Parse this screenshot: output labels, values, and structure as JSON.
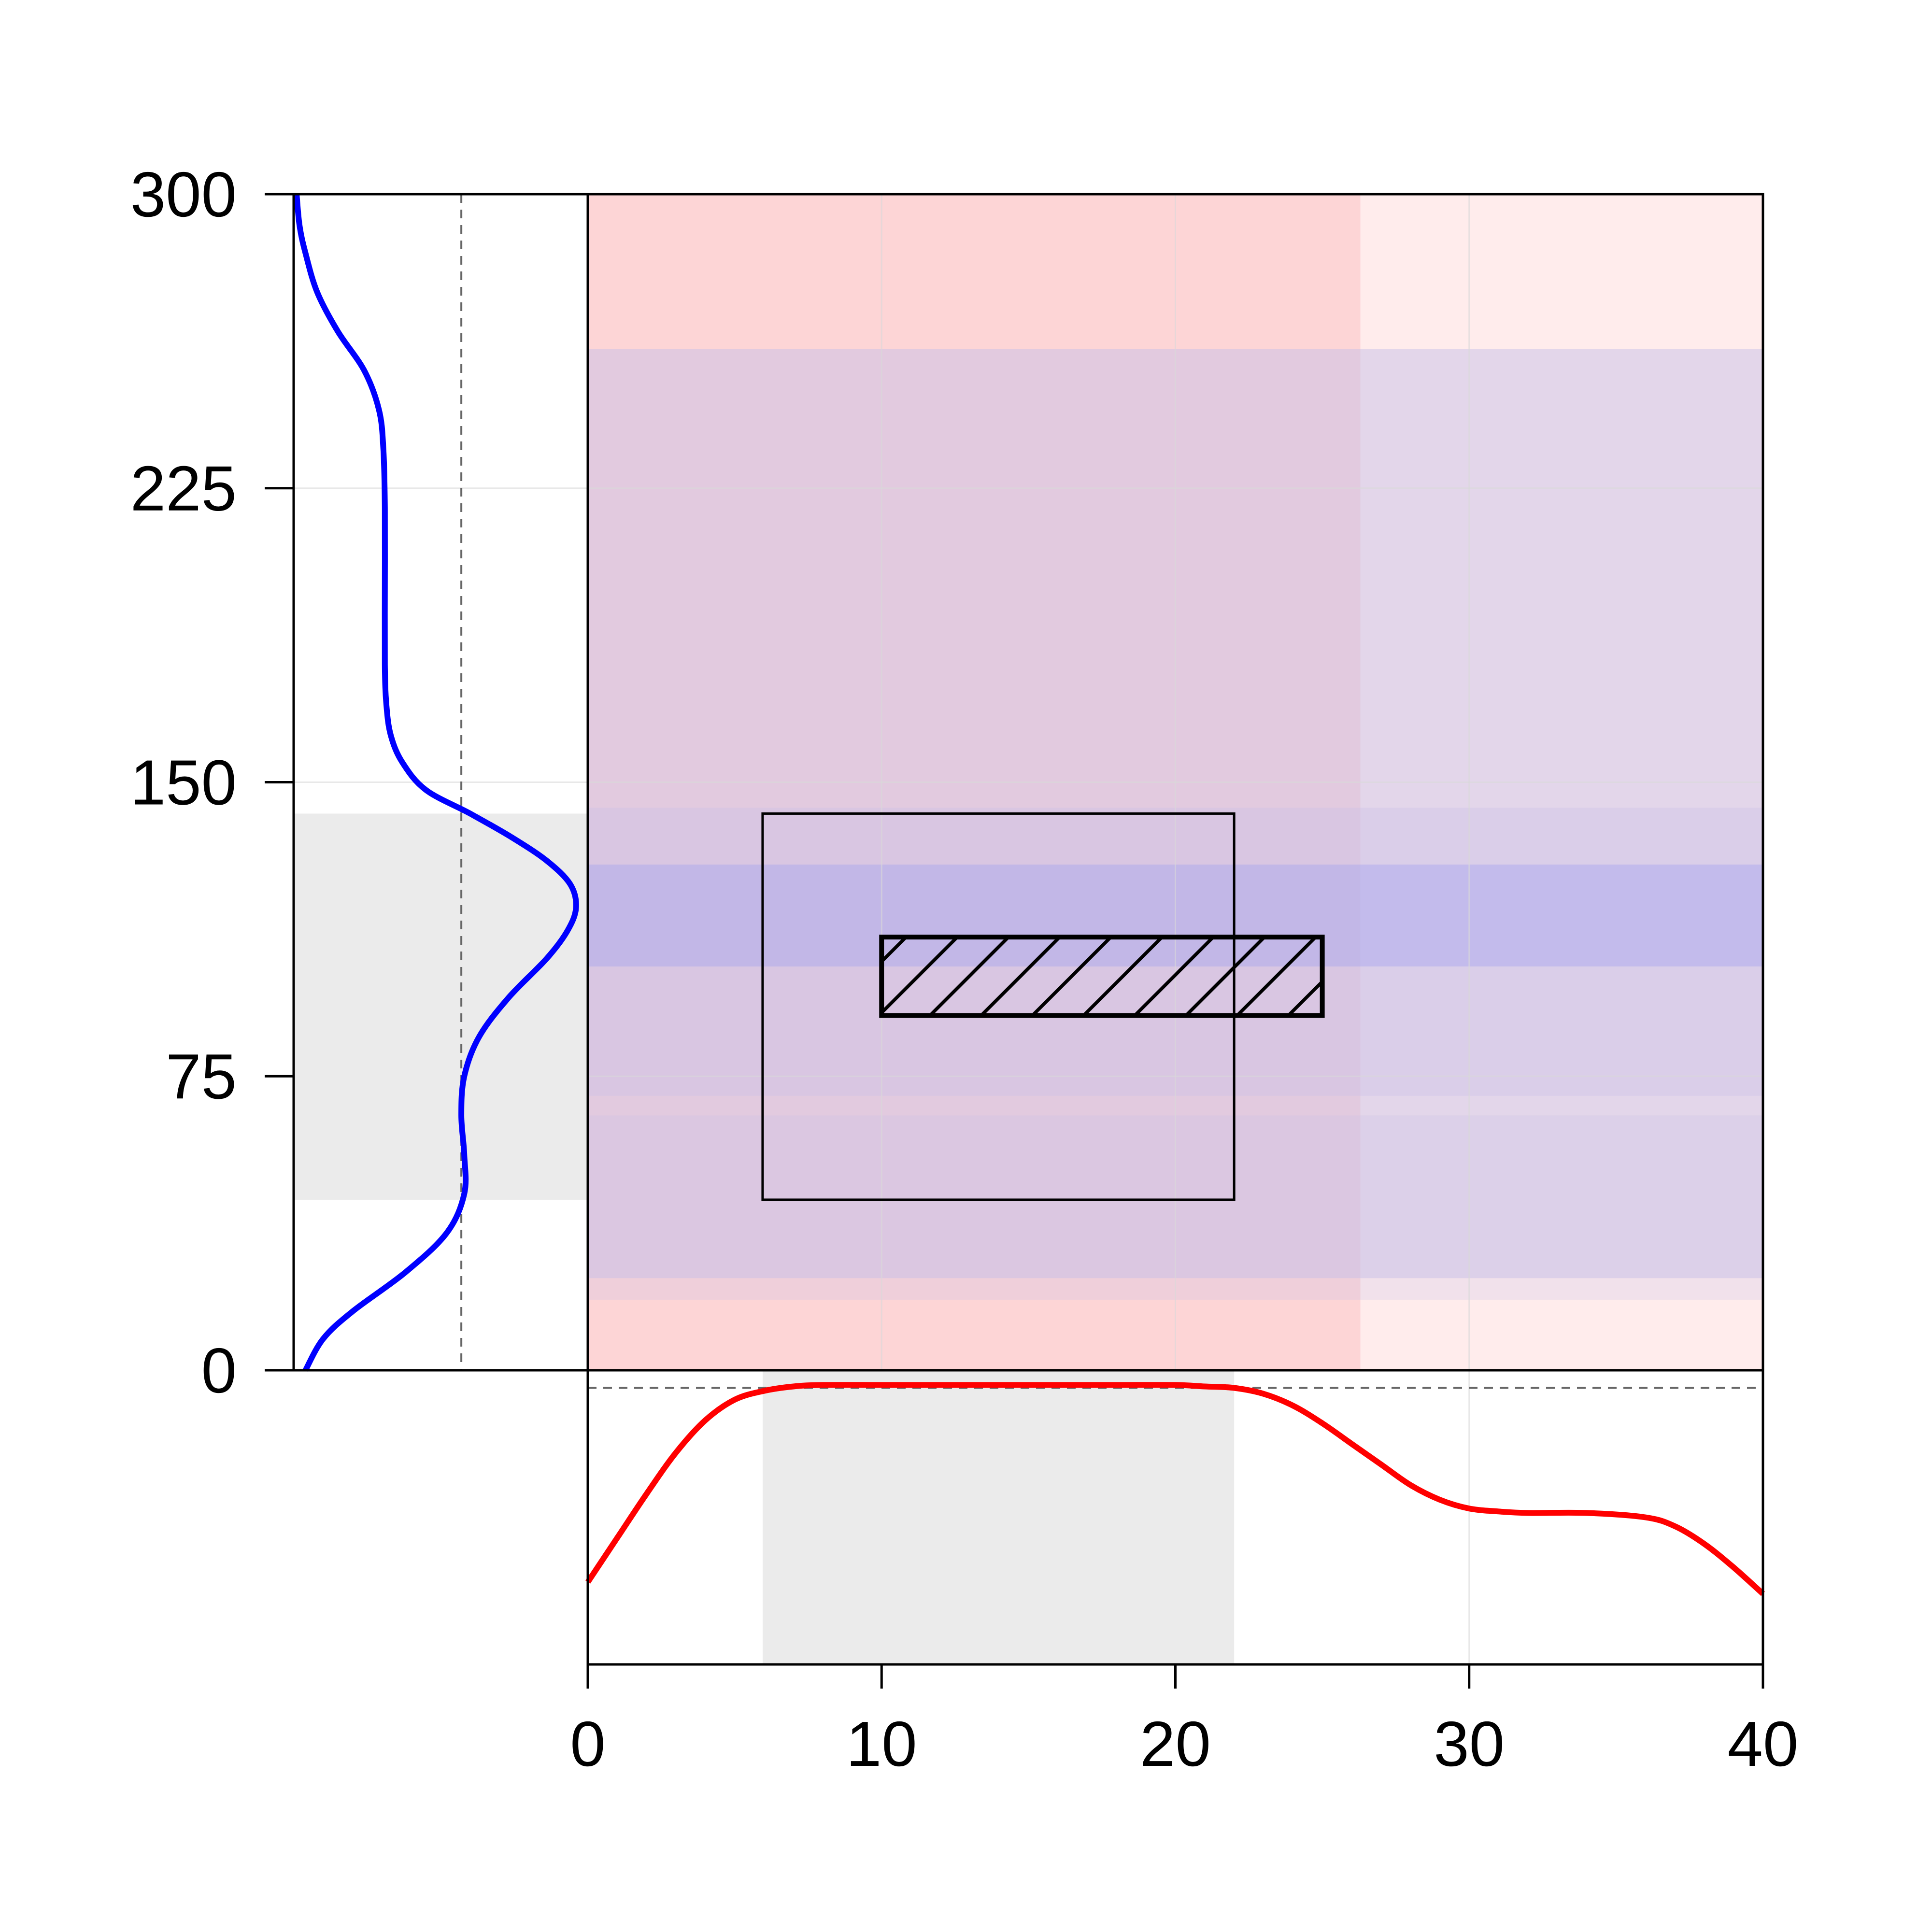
{
  "chart_data": {
    "type": "area",
    "title": "",
    "xlabel": "",
    "ylabel": "",
    "xlim": [
      0,
      40
    ],
    "ylim": [
      0,
      300
    ],
    "x_ticks": [
      "0",
      "10",
      "20",
      "30",
      "40"
    ],
    "x_tick_values": [
      0,
      10,
      20,
      30,
      40
    ],
    "y_ticks": [
      "0",
      "75",
      "150",
      "225",
      "300"
    ],
    "y_tick_values": [
      0,
      75,
      150,
      225,
      300
    ],
    "grid": true,
    "x_bands": [
      {
        "name": "x-band-strong",
        "x0": 0,
        "x1": 26.3,
        "color": "#fdd5d6"
      },
      {
        "name": "x-band-light",
        "x0": 26.3,
        "x1": 40,
        "color": "#ffecec"
      }
    ],
    "y_bands": [
      {
        "name": "y-band-main",
        "y0": 23.5,
        "y1": 260.5,
        "color": "#c8c0e8",
        "opacity": 0.5
      },
      {
        "name": "y-band-mid",
        "y0": 70,
        "y1": 143.5,
        "color": "#c8c0e8",
        "opacity": 0.35
      },
      {
        "name": "y-band-core",
        "y0": 103,
        "y1": 129,
        "color": "#a0a0f0",
        "opacity": 0.4
      },
      {
        "name": "y-band-low",
        "y0": 18,
        "y1": 65,
        "color": "#c8c0e8",
        "opacity": 0.25
      }
    ],
    "outer_box": {
      "x0": 5.95,
      "x1": 22.0,
      "y0": 43.5,
      "y1": 142.0
    },
    "inner_hatched_box": {
      "x0": 10.0,
      "x1": 25.0,
      "y0": 90.5,
      "y1": 110.5
    },
    "x_marginal": {
      "name": "x-density",
      "color": "#ff0000",
      "shaded_range": [
        5.95,
        22.0
      ],
      "reference_level": 0.94,
      "x": [
        0,
        1,
        2,
        3,
        4,
        5,
        6,
        7,
        8,
        10,
        12,
        14,
        16,
        18,
        20,
        21,
        22,
        23,
        24,
        25,
        26,
        27,
        28,
        29,
        30,
        31,
        32,
        34,
        36,
        37,
        38,
        39,
        40
      ],
      "y": [
        0.28,
        0.43,
        0.58,
        0.72,
        0.83,
        0.9,
        0.93,
        0.945,
        0.95,
        0.95,
        0.95,
        0.95,
        0.95,
        0.95,
        0.95,
        0.945,
        0.94,
        0.92,
        0.88,
        0.82,
        0.75,
        0.68,
        0.61,
        0.56,
        0.53,
        0.52,
        0.515,
        0.515,
        0.5,
        0.47,
        0.41,
        0.33,
        0.24
      ]
    },
    "y_marginal": {
      "name": "y-density",
      "color": "#0000ff",
      "shaded_range": [
        43.5,
        142.0
      ],
      "reference_level": 0.57,
      "y": [
        0,
        8,
        15,
        25,
        35,
        45,
        55,
        65,
        75,
        85,
        95,
        105,
        112,
        118,
        124,
        130,
        136,
        142,
        148,
        155,
        162,
        170,
        180,
        200,
        220,
        235,
        245,
        255,
        265,
        275,
        285,
        292,
        300
      ],
      "v": [
        0.04,
        0.1,
        0.2,
        0.38,
        0.52,
        0.58,
        0.58,
        0.57,
        0.58,
        0.63,
        0.73,
        0.86,
        0.93,
        0.96,
        0.94,
        0.86,
        0.74,
        0.6,
        0.45,
        0.37,
        0.33,
        0.315,
        0.31,
        0.31,
        0.31,
        0.305,
        0.29,
        0.24,
        0.15,
        0.08,
        0.04,
        0.02,
        0.01
      ]
    }
  }
}
